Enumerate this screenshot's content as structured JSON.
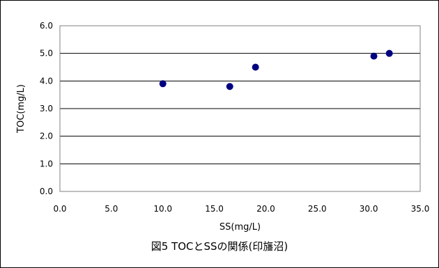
{
  "figure": {
    "caption": "図5 TOCとSSの関係(印旛沼)"
  },
  "chart_data": {
    "type": "scatter",
    "title": "",
    "xlabel": "SS(mg/L)",
    "ylabel": "TOC(mg/L)",
    "xlim": [
      0,
      35
    ],
    "ylim": [
      0,
      6
    ],
    "x_ticks": [
      "0.0",
      "5.0",
      "10.0",
      "15.0",
      "20.0",
      "25.0",
      "30.0",
      "35.0"
    ],
    "y_ticks": [
      "0.0",
      "1.0",
      "2.0",
      "3.0",
      "4.0",
      "5.0",
      "6.0"
    ],
    "grid": "horizontal",
    "legend": "none",
    "marker_color": "#000080",
    "series": [
      {
        "points": [
          {
            "x": 10.0,
            "y": 3.9
          },
          {
            "x": 16.5,
            "y": 3.8
          },
          {
            "x": 19.0,
            "y": 4.5
          },
          {
            "x": 30.5,
            "y": 4.9
          },
          {
            "x": 32.0,
            "y": 5.0
          }
        ]
      }
    ]
  }
}
